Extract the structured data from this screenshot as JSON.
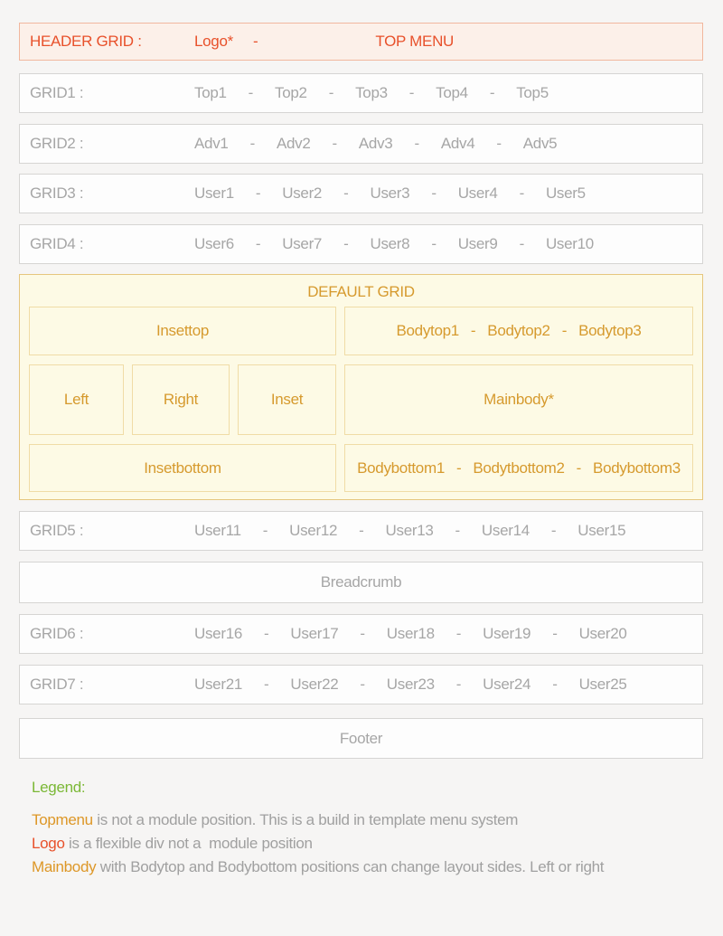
{
  "separator": "-",
  "header": {
    "label": "HEADER GRID :",
    "logo": "Logo*",
    "separator": "-",
    "menu": "TOP MENU"
  },
  "grids": [
    {
      "label": "GRID1 :",
      "items": [
        "Top1",
        "Top2",
        "Top3",
        "Top4",
        "Top5"
      ]
    },
    {
      "label": "GRID2 :",
      "items": [
        "Adv1",
        "Adv2",
        "Adv3",
        "Adv4",
        "Adv5"
      ]
    },
    {
      "label": "GRID3 :",
      "items": [
        "User1",
        "User2",
        "User3",
        "User4",
        "User5"
      ]
    },
    {
      "label": "GRID4 :",
      "items": [
        "User6",
        "User7",
        "User8",
        "User9",
        "User10"
      ]
    },
    {
      "label": "GRID5 :",
      "items": [
        "User11",
        "User12",
        "User13",
        "User14",
        "User15"
      ]
    },
    {
      "label": "GRID6 :",
      "items": [
        "User16",
        "User17",
        "User18",
        "User19",
        "User20"
      ]
    },
    {
      "label": "GRID7 :",
      "items": [
        "User21",
        "User22",
        "User23",
        "User24",
        "User25"
      ]
    }
  ],
  "default_grid": {
    "title": "DEFAULT GRID",
    "insettop": "Insettop",
    "bodytop": [
      "Bodytop1",
      "Bodytop2",
      "Bodytop3"
    ],
    "left": "Left",
    "right": "Right",
    "inset": "Inset",
    "mainbody": "Mainbody*",
    "insetbottom": "Insetbottom",
    "bodybottom": [
      "Bodybottom1",
      "Bodytbottom2",
      "Bodybottom3"
    ]
  },
  "breadcrumb": "Breadcrumb",
  "footer": "Footer",
  "legend": {
    "title": "Legend:",
    "lines": [
      {
        "term": "Topmenu",
        "text": " is not a module position. This is a build in template menu system"
      },
      {
        "term": "Logo",
        "text": " is a flexible div not a  module position"
      },
      {
        "term": "Mainbody",
        "text": " with Bodytop and Bodybottom positions can change layout sides. Left or right"
      }
    ]
  },
  "colors": {
    "page_background": "#f6f5f4",
    "box_border": "#d6d5d3",
    "muted_gray_text": "#a6a6a6",
    "header_background": "#fcf0e9",
    "header_border": "#f1b79e",
    "accent_red": "#e8512b",
    "default_grid_background": "#fdfae5",
    "default_grid_border": "#e6c67e",
    "default_grid_inner_border": "#f0dca6",
    "accent_gold": "#d69a2e",
    "legend_green": "#7bb836",
    "legend_term_orange": "#dd9727"
  }
}
